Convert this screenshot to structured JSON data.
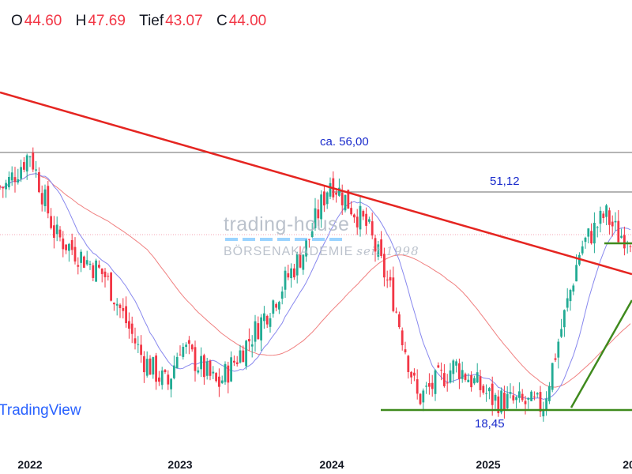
{
  "ohlc": [
    {
      "key": "O",
      "value": "44.60"
    },
    {
      "key": "H",
      "value": "47.69"
    },
    {
      "key": "Tief",
      "value": "43.07"
    },
    {
      "key": "C",
      "value": "44.00"
    }
  ],
  "watermark": {
    "brand": "trading-house",
    "subtitle": "BÖRSENAKADEMIE",
    "since": "seit 1998"
  },
  "tv_logo": "TradingView",
  "colors": {
    "up": "#22ab94",
    "down": "#f23645",
    "downtrend_line": "#e52521",
    "support_lines": "#3f8a1d",
    "ma_short": "#8888ee",
    "ma_long": "#f08080",
    "level_lines": "#888888"
  },
  "chart_data": {
    "type": "candlestick",
    "x_ticks": [
      "2022",
      "2023",
      "2024",
      "2025",
      "20"
    ],
    "levels": [
      {
        "label": "ca. 56,00",
        "value": 56.0
      },
      {
        "label": "51,12",
        "value": 51.12
      },
      {
        "label": "18,45",
        "value": 18.45
      }
    ],
    "last_ohlc": {
      "open": 44.6,
      "high": 47.69,
      "low": 43.07,
      "close": 44.0
    },
    "price_series_approx": [
      {
        "x": "2021-11",
        "y": 51
      },
      {
        "x": "2022-01",
        "y": 56
      },
      {
        "x": "2022-03",
        "y": 44
      },
      {
        "x": "2022-07",
        "y": 38
      },
      {
        "x": "2022-10",
        "y": 26
      },
      {
        "x": "2022-12",
        "y": 22
      },
      {
        "x": "2023-01",
        "y": 28
      },
      {
        "x": "2023-04",
        "y": 22
      },
      {
        "x": "2023-07",
        "y": 30
      },
      {
        "x": "2023-11",
        "y": 42
      },
      {
        "x": "2024-01",
        "y": 52
      },
      {
        "x": "2024-04",
        "y": 45
      },
      {
        "x": "2024-06",
        "y": 35
      },
      {
        "x": "2024-08",
        "y": 20
      },
      {
        "x": "2024-11",
        "y": 25
      },
      {
        "x": "2025-02",
        "y": 20
      },
      {
        "x": "2025-06",
        "y": 19
      },
      {
        "x": "2025-09",
        "y": 42
      },
      {
        "x": "2025-11",
        "y": 47
      },
      {
        "x": "2025-12",
        "y": 44
      }
    ]
  }
}
